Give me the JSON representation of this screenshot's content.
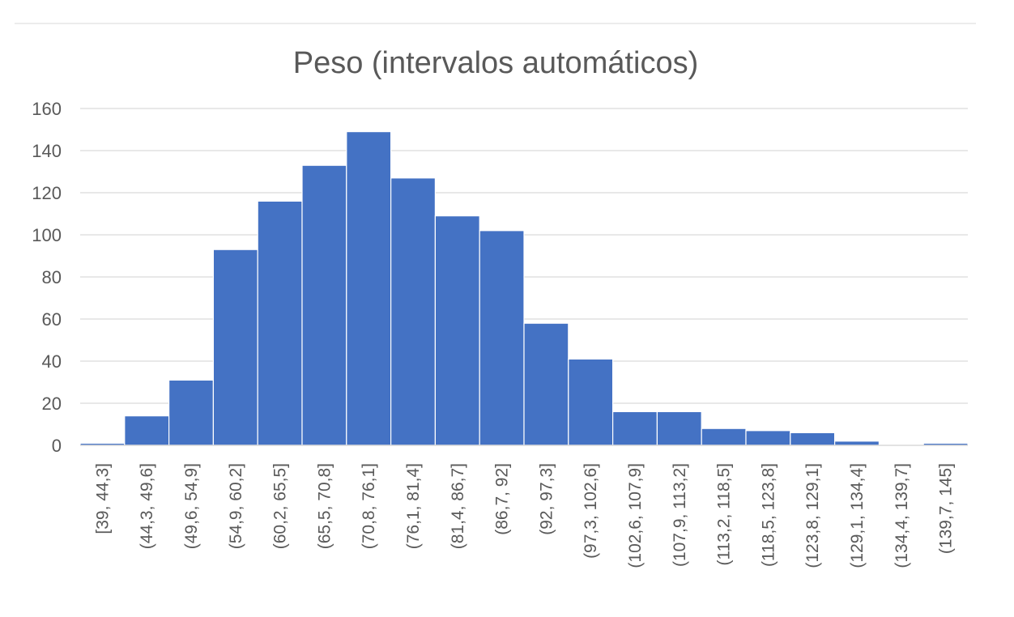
{
  "chart_data": {
    "type": "bar",
    "title": "Peso (intervalos automáticos)",
    "xlabel": "",
    "ylabel": "",
    "ylim": [
      0,
      160
    ],
    "yticks": [
      "0",
      "20",
      "40",
      "60",
      "80",
      "100",
      "120",
      "140",
      "160"
    ],
    "grid": true,
    "legend": "none",
    "bar_color": "#4472C4",
    "categories": [
      "[39, 44,3]",
      "(44,3, 49,6]",
      "(49,6, 54,9]",
      "(54,9, 60,2]",
      "(60,2, 65,5]",
      "(65,5, 70,8]",
      "(70,8, 76,1]",
      "(76,1, 81,4]",
      "(81,4, 86,7]",
      "(86,7, 92]",
      "(92, 97,3]",
      "(97,3, 102,6]",
      "(102,6, 107,9]",
      "(107,9, 113,2]",
      "(113,2, 118,5]",
      "(118,5, 123,8]",
      "(123,8, 129,1]",
      "(129,1, 134,4]",
      "(134,4, 139,7]",
      "(139,7, 145]"
    ],
    "values": [
      1,
      14,
      31,
      93,
      116,
      133,
      149,
      127,
      109,
      102,
      58,
      41,
      16,
      16,
      8,
      7,
      6,
      2,
      0,
      1
    ]
  }
}
